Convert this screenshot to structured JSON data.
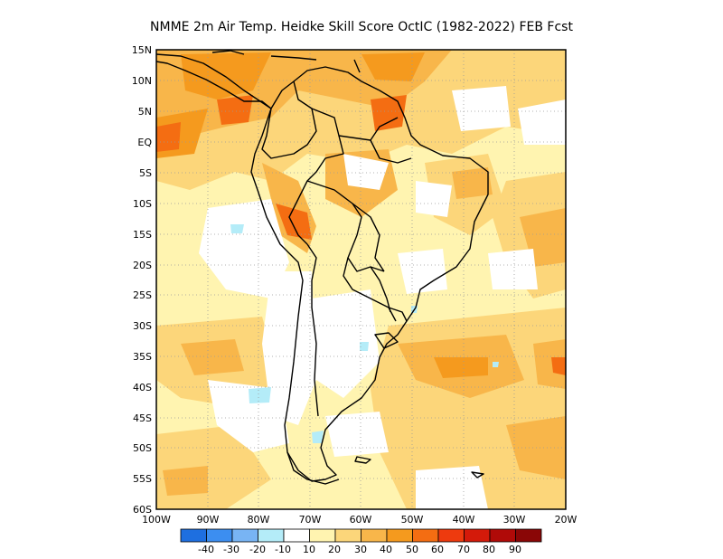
{
  "title": "NMME  2m Air Temp. Heidke Skill Score OctIC (1982-2022) FEB Fcst",
  "map": {
    "lat_labels": [
      "15N",
      "10N",
      "5N",
      "EQ",
      "5S",
      "10S",
      "15S",
      "20S",
      "25S",
      "30S",
      "35S",
      "40S",
      "45S",
      "50S",
      "55S",
      "60S"
    ],
    "lon_labels": [
      "100W",
      "90W",
      "80W",
      "70W",
      "60W",
      "50W",
      "40W",
      "30W",
      "20W"
    ],
    "lat_range": [
      -60,
      15
    ],
    "lon_range": [
      -100,
      -20
    ],
    "grid": "dotted"
  },
  "colorbar": {
    "labels": [
      "-40",
      "-30",
      "-20",
      "-10",
      "10",
      "20",
      "30",
      "40",
      "50",
      "60",
      "70",
      "80",
      "90"
    ],
    "colors": [
      "#1e6fe0",
      "#3c8ef0",
      "#78b4f4",
      "#b4ecf8",
      "#ffffff",
      "#fff4b0",
      "#fcd67a",
      "#f8b64a",
      "#f59a1e",
      "#f46d12",
      "#ee3a0e",
      "#d41a0a",
      "#b00a08",
      "#8a0606"
    ]
  },
  "skill_colors": {
    "white": "#ffffff",
    "pale_yellow": "#fff4b0",
    "light_orange": "#fcd67a",
    "orange": "#f8b64a",
    "deep_orange": "#f59a1e",
    "red_orange": "#f46d12",
    "cyan": "#b4ecf8"
  }
}
